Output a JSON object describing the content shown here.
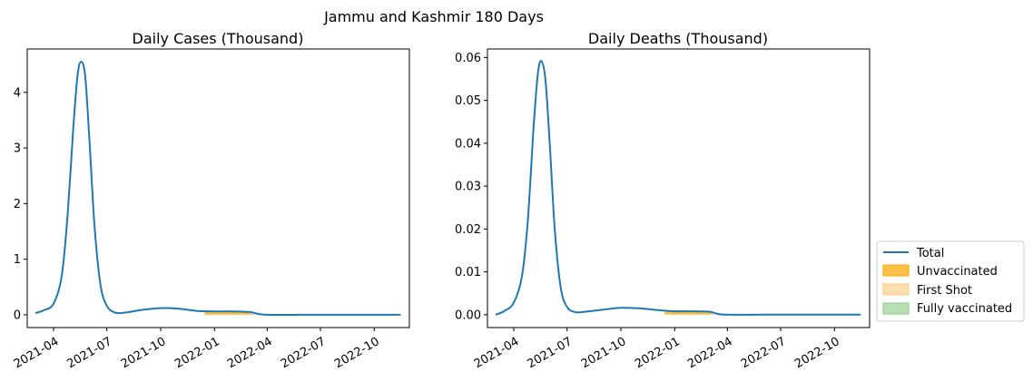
{
  "suptitle": "Jammu and Kashmir 180 Days",
  "colors": {
    "total": "#1f77b4",
    "unvaccinated": "#ffa500",
    "first_shot": "#fbc97a",
    "fully_vaccinated": "#88c883",
    "legend_border": "#cccccc",
    "axes": "#000000"
  },
  "legend": {
    "placement": "right, outside lower",
    "entries": [
      "Total",
      "Unvaccinated",
      "First Shot",
      "Fully vaccinated"
    ]
  },
  "chart_data": [
    {
      "type": "line",
      "title": "Daily Cases (Thousand)",
      "xlabel": "",
      "ylabel": "",
      "grid": false,
      "xlim": [
        "2021-02-15",
        "2022-11-30"
      ],
      "ylim": [
        -0.23,
        4.78
      ],
      "x_tick_labels": [
        "2021-04",
        "2021-07",
        "2021-10",
        "2022-01",
        "2022-04",
        "2022-07",
        "2022-10"
      ],
      "x_ticks": [
        "2021-04-01",
        "2021-07-01",
        "2021-10-01",
        "2022-01-01",
        "2022-04-01",
        "2022-07-01",
        "2022-10-01"
      ],
      "y_ticks": [
        0,
        1,
        2,
        3,
        4
      ],
      "y_tick_labels": [
        "0",
        "1",
        "2",
        "3",
        "4"
      ],
      "series": [
        {
          "name": "Total",
          "x": [
            "2021-03-01",
            "2021-03-15",
            "2021-04-01",
            "2021-04-15",
            "2021-04-25",
            "2021-05-05",
            "2021-05-12",
            "2021-05-18",
            "2021-05-25",
            "2021-06-01",
            "2021-06-10",
            "2021-06-20",
            "2021-07-01",
            "2021-07-15",
            "2021-08-01",
            "2021-09-01",
            "2021-10-01",
            "2021-11-01",
            "2021-12-01",
            "2022-01-01",
            "2022-02-01",
            "2022-03-01",
            "2022-03-15",
            "2022-04-01",
            "2022-06-01",
            "2022-08-01",
            "2022-11-15"
          ],
          "values": [
            0.03,
            0.08,
            0.2,
            0.7,
            1.8,
            3.4,
            4.3,
            4.55,
            4.3,
            3.2,
            1.6,
            0.55,
            0.16,
            0.04,
            0.04,
            0.09,
            0.12,
            0.11,
            0.07,
            0.06,
            0.06,
            0.05,
            0.02,
            0.0,
            0.0,
            0.0,
            0.0
          ]
        },
        {
          "name": "Unvaccinated",
          "type": "area",
          "x": [
            "2021-12-15",
            "2022-01-01",
            "2022-02-01",
            "2022-02-20",
            "2022-03-01",
            "2022-03-10"
          ],
          "values": [
            0.07,
            0.06,
            0.06,
            0.065,
            0.04,
            0.0
          ]
        }
      ]
    },
    {
      "type": "line",
      "title": "Daily Deaths (Thousand)",
      "xlabel": "",
      "ylabel": "",
      "grid": false,
      "xlim": [
        "2021-02-15",
        "2022-11-30"
      ],
      "ylim": [
        -0.003,
        0.062
      ],
      "x_tick_labels": [
        "2021-04",
        "2021-07",
        "2021-10",
        "2022-01",
        "2022-04",
        "2022-07",
        "2022-10"
      ],
      "x_ticks": [
        "2021-04-01",
        "2021-07-01",
        "2021-10-01",
        "2022-01-01",
        "2022-04-01",
        "2022-07-01",
        "2022-10-01"
      ],
      "y_ticks": [
        0,
        0.01,
        0.02,
        0.03,
        0.04,
        0.05,
        0.06
      ],
      "y_tick_labels": [
        "0.00",
        "0.01",
        "0.02",
        "0.03",
        "0.04",
        "0.05",
        "0.06"
      ],
      "series": [
        {
          "name": "Total",
          "x": [
            "2021-03-01",
            "2021-03-15",
            "2021-04-01",
            "2021-04-15",
            "2021-04-25",
            "2021-05-05",
            "2021-05-12",
            "2021-05-18",
            "2021-05-25",
            "2021-06-01",
            "2021-06-10",
            "2021-06-20",
            "2021-07-01",
            "2021-07-15",
            "2021-08-01",
            "2021-09-01",
            "2021-10-01",
            "2021-11-01",
            "2021-12-01",
            "2022-01-01",
            "2022-02-01",
            "2022-03-01",
            "2022-03-15",
            "2022-04-01",
            "2022-06-01",
            "2022-08-01",
            "2022-11-15"
          ],
          "values": [
            0.0,
            0.0008,
            0.0028,
            0.009,
            0.022,
            0.044,
            0.056,
            0.0592,
            0.055,
            0.041,
            0.02,
            0.0065,
            0.0018,
            0.0006,
            0.0007,
            0.0012,
            0.0016,
            0.0015,
            0.0011,
            0.0008,
            0.0008,
            0.0007,
            0.0002,
            0.0,
            0.0,
            0.0,
            0.0
          ]
        },
        {
          "name": "Unvaccinated",
          "type": "area",
          "x": [
            "2021-12-15",
            "2022-01-01",
            "2022-02-01",
            "2022-02-20",
            "2022-03-01",
            "2022-03-10"
          ],
          "values": [
            0.0009,
            0.0008,
            0.0008,
            0.0008,
            0.0005,
            0.0
          ]
        }
      ]
    }
  ]
}
